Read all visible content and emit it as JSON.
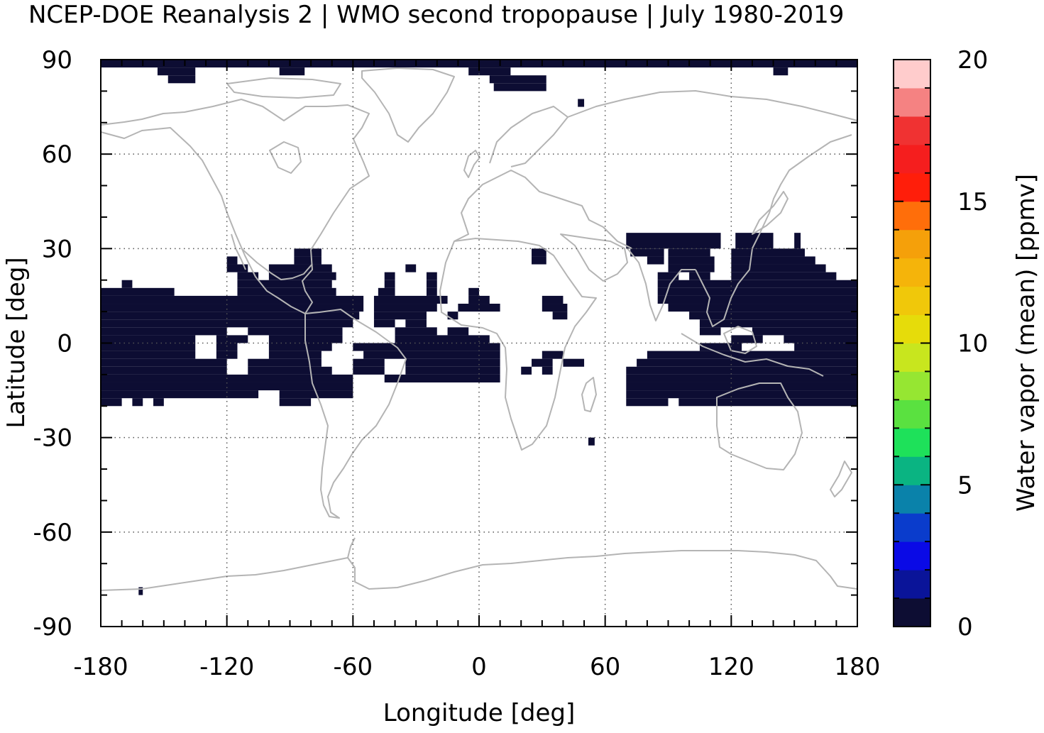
{
  "chart_data": {
    "type": "heatmap",
    "title": "NCEP-DOE Reanalysis 2 | WMO second tropopause | July 1980-2019",
    "xlabel": "Longitude [deg]",
    "ylabel": "Latitude [deg]",
    "xlim": [
      -180,
      180
    ],
    "ylim": [
      -90,
      90
    ],
    "x_ticks": [
      "-180",
      "-120",
      "-60",
      "0",
      "60",
      "120",
      "180"
    ],
    "y_ticks": [
      "-90",
      "-60",
      "-30",
      "0",
      "30",
      "60",
      "90"
    ],
    "grid": true,
    "cell_color": "#0d0d33",
    "coast_color": "#b4b4b4",
    "colorbar": {
      "label": "Water vapor (mean) [ppmv]",
      "min": 0,
      "max": 20,
      "ticks": [
        "0",
        "5",
        "10",
        "15",
        "20"
      ],
      "colors": [
        "#0d0d33",
        "#0a1499",
        "#0a0ae6",
        "#0a3ccc",
        "#0a82aa",
        "#0ab482",
        "#1ee15a",
        "#5ae140",
        "#96e632",
        "#c8e61e",
        "#e6dc0a",
        "#f0c80a",
        "#f5b40a",
        "#f5a00a",
        "#ff6e0a",
        "#ff1e0a",
        "#f51e1e",
        "#f03232",
        "#f58282",
        "#ffcccc"
      ]
    },
    "cells_deg_2p5": [
      {
        "lat": [
          87.5,
          90
        ],
        "lon": [
          [
            -180,
            180
          ]
        ]
      },
      {
        "lat": [
          85,
          87.5
        ],
        "lon": [
          [
            -153,
            -135
          ],
          [
            -95,
            -83
          ],
          [
            -5,
            15
          ],
          [
            140,
            147
          ]
        ]
      },
      {
        "lat": [
          82.5,
          85
        ],
        "lon": [
          [
            -148,
            -135
          ],
          [
            5,
            32
          ]
        ]
      },
      {
        "lat": [
          80,
          82.5
        ],
        "lon": [
          [
            7,
            32
          ]
        ]
      },
      {
        "lat": [
          75,
          77.5
        ],
        "lon": [
          [
            47,
            50
          ]
        ]
      },
      {
        "lat": [
          30,
          35
        ],
        "lon": [
          [
            70,
            115
          ],
          [
            122,
            140
          ],
          [
            150,
            153
          ]
        ]
      },
      {
        "lat": [
          27.5,
          30
        ],
        "lon": [
          [
            -88,
            -75
          ],
          [
            25,
            32
          ],
          [
            72,
            88
          ],
          [
            90,
            110
          ],
          [
            120,
            155
          ]
        ]
      },
      {
        "lat": [
          25,
          27.5
        ],
        "lon": [
          [
            -120,
            -115
          ],
          [
            -88,
            -75
          ],
          [
            25,
            32
          ],
          [
            80,
            88
          ],
          [
            90,
            112
          ],
          [
            120,
            160
          ]
        ]
      },
      {
        "lat": [
          22.5,
          25
        ],
        "lon": [
          [
            -120,
            -110
          ],
          [
            -100,
            -70
          ],
          [
            -35,
            -30
          ],
          [
            90,
            112
          ],
          [
            120,
            165
          ]
        ]
      },
      {
        "lat": [
          20,
          22.5
        ],
        "lon": [
          [
            -115,
            -105
          ],
          [
            -100,
            -68
          ],
          [
            -45,
            -40
          ],
          [
            -25,
            -20
          ],
          [
            85,
            95
          ],
          [
            100,
            110
          ],
          [
            120,
            170
          ]
        ]
      },
      {
        "lat": [
          17.5,
          20
        ],
        "lon": [
          [
            -170,
            -165
          ],
          [
            -115,
            -70
          ],
          [
            -45,
            -40
          ],
          [
            -25,
            -20
          ],
          [
            85,
            180
          ]
        ]
      },
      {
        "lat": [
          15,
          17.5
        ],
        "lon": [
          [
            -180,
            -145
          ],
          [
            -115,
            -68
          ],
          [
            -48,
            -40
          ],
          [
            -25,
            -20
          ],
          [
            -5,
            0
          ],
          [
            85,
            180
          ]
        ]
      },
      {
        "lat": [
          12.5,
          15
        ],
        "lon": [
          [
            -180,
            -55
          ],
          [
            -50,
            -15
          ],
          [
            -5,
            5
          ],
          [
            30,
            40
          ],
          [
            85,
            180
          ]
        ]
      },
      {
        "lat": [
          10,
          12.5
        ],
        "lon": [
          [
            -180,
            -55
          ],
          [
            -50,
            -20
          ],
          [
            -10,
            10
          ],
          [
            30,
            42
          ],
          [
            90,
            180
          ]
        ]
      },
      {
        "lat": [
          7.5,
          10
        ],
        "lon": [
          [
            -180,
            -57
          ],
          [
            -50,
            -25
          ],
          [
            -15,
            -10
          ],
          [
            35,
            42
          ],
          [
            100,
            180
          ]
        ]
      },
      {
        "lat": [
          5,
          7.5
        ],
        "lon": [
          [
            -180,
            -60
          ],
          [
            -50,
            -40
          ],
          [
            -35,
            -25
          ],
          [
            105,
            180
          ]
        ]
      },
      {
        "lat": [
          2.5,
          5
        ],
        "lon": [
          [
            -180,
            -120
          ],
          [
            -110,
            -65
          ],
          [
            -40,
            -20
          ],
          [
            -15,
            -5
          ],
          [
            105,
            115
          ],
          [
            130,
            180
          ]
        ]
      },
      {
        "lat": [
          0,
          2.5
        ],
        "lon": [
          [
            -180,
            -135
          ],
          [
            -125,
            -110
          ],
          [
            -100,
            -65
          ],
          [
            -40,
            5
          ],
          [
            120,
            135
          ],
          [
            145,
            180
          ]
        ]
      },
      {
        "lat": [
          -2.5,
          0
        ],
        "lon": [
          [
            -180,
            -135
          ],
          [
            -125,
            -115
          ],
          [
            -100,
            -70
          ],
          [
            -60,
            10
          ],
          [
            105,
            125
          ],
          [
            150,
            180
          ]
        ]
      },
      {
        "lat": [
          -5,
          -2.5
        ],
        "lon": [
          [
            -180,
            -135
          ],
          [
            -125,
            -115
          ],
          [
            -100,
            -75
          ],
          [
            -55,
            10
          ],
          [
            30,
            40
          ],
          [
            80,
            180
          ]
        ]
      },
      {
        "lat": [
          -7.5,
          -5
        ],
        "lon": [
          [
            -180,
            -120
          ],
          [
            -110,
            -75
          ],
          [
            -60,
            -45
          ],
          [
            -35,
            10
          ],
          [
            25,
            35
          ],
          [
            40,
            50
          ],
          [
            75,
            180
          ]
        ]
      },
      {
        "lat": [
          -10,
          -7.5
        ],
        "lon": [
          [
            -180,
            -120
          ],
          [
            -110,
            -70
          ],
          [
            -60,
            -45
          ],
          [
            -35,
            10
          ],
          [
            20,
            25
          ],
          [
            30,
            35
          ],
          [
            70,
            180
          ]
        ]
      },
      {
        "lat": [
          -12.5,
          -10
        ],
        "lon": [
          [
            -180,
            -90
          ],
          [
            -90,
            -60
          ],
          [
            -45,
            10
          ],
          [
            70,
            180
          ]
        ]
      },
      {
        "lat": [
          -15,
          -12.5
        ],
        "lon": [
          [
            -180,
            -60
          ],
          [
            70,
            180
          ]
        ]
      },
      {
        "lat": [
          -17.5,
          -15
        ],
        "lon": [
          [
            -180,
            -105
          ],
          [
            -95,
            -60
          ],
          [
            70,
            180
          ]
        ]
      },
      {
        "lat": [
          -20,
          -17.5
        ],
        "lon": [
          [
            -180,
            -170
          ],
          [
            -165,
            -160
          ],
          [
            -155,
            -150
          ],
          [
            -95,
            -80
          ],
          [
            70,
            90
          ],
          [
            95,
            180
          ]
        ]
      },
      {
        "lat": [
          -32.5,
          -30
        ],
        "lon": [
          [
            52,
            55
          ]
        ]
      },
      {
        "lat": [
          -80,
          -77.5
        ],
        "lon": [
          [
            -162,
            -160
          ]
        ]
      }
    ]
  }
}
